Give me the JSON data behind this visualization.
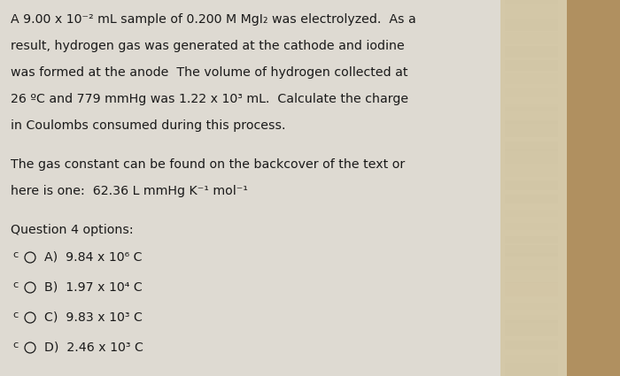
{
  "bg_color": "#dedad2",
  "right_panel_color": "#c8b898",
  "far_right_color": "#a08060",
  "text_color": "#1a1a1a",
  "title_lines": [
    "A 9.00 x 10⁻² mL sample of 0.200 M MgI₂ was electrolyzed.  As a",
    "result, hydrogen gas was generated at the cathode and iodine",
    "was formed at the anode  The volume of hydrogen collected at",
    "26 ºC and 779 mmHg was 1.22 x 10³ mL.  Calculate the charge",
    "in Coulombs consumed during this process."
  ],
  "subtitle_lines": [
    "The gas constant can be found on the backcover of the text or",
    "here is one:  62.36 L mmHg K⁻¹ mol⁻¹"
  ],
  "options_label": "Question 4 options:",
  "options": [
    "A)  9.84 x 10⁶ C",
    "B)  1.97 x 10⁴ C",
    "C)  9.83 x 10³ C",
    "D)  2.46 x 10³ C"
  ],
  "radio_label": "c",
  "main_font_size": 10.2,
  "option_font_size": 10.2
}
